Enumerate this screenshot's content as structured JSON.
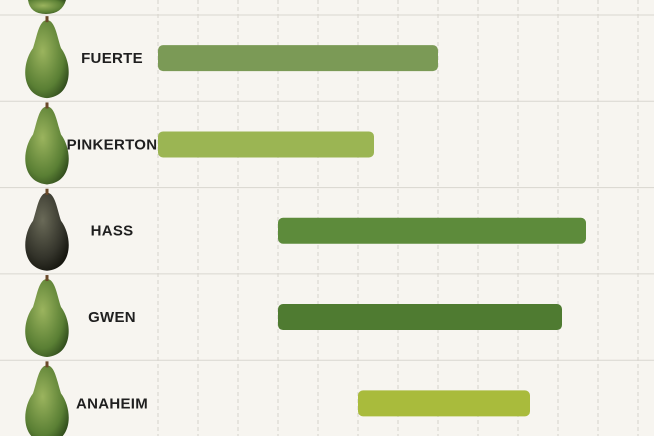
{
  "chart_data": {
    "type": "range-bar",
    "categories": [
      "FUERTE",
      "PINKERTON",
      "HASS",
      "GWEN",
      "ANAHEIM"
    ],
    "starts": [
      0,
      0,
      3,
      3,
      5
    ],
    "ends": [
      7,
      5.4,
      10.7,
      10.1,
      9.3
    ],
    "colors": [
      "#7b9a56",
      "#9bb553",
      "#5d8b3b",
      "#4f7b31",
      "#a9bb3c"
    ],
    "xlim": [
      0,
      12.4
    ],
    "xticks": [
      0,
      1,
      2,
      3,
      4,
      5,
      6,
      7,
      8,
      9,
      10,
      11,
      12
    ],
    "grid": true
  }
}
